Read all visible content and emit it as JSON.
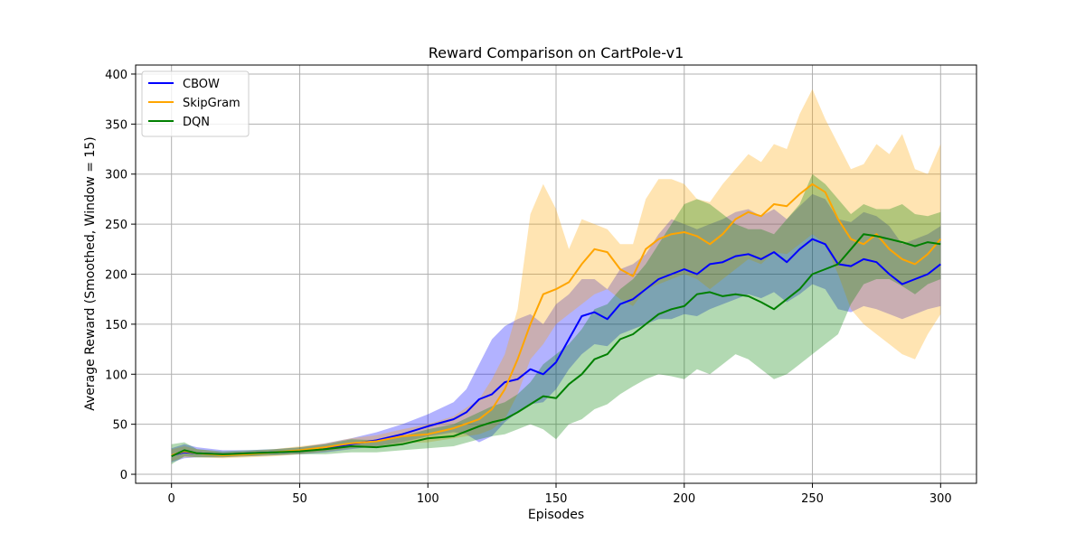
{
  "chart_data": {
    "type": "line",
    "title": "Reward Comparison on CartPole-v1",
    "xlabel": "Episodes",
    "ylabel": "Average Reward (Smoothed, Window = 15)",
    "xlim": [
      -14,
      314
    ],
    "ylim": [
      -9,
      409
    ],
    "xticks": [
      0,
      50,
      100,
      150,
      200,
      250,
      300
    ],
    "yticks": [
      0,
      50,
      100,
      150,
      200,
      250,
      300,
      350,
      400
    ],
    "grid": true,
    "legend_position": "top-left",
    "series": [
      {
        "name": "CBOW",
        "color": "#0000ff",
        "x": [
          0,
          5,
          10,
          20,
          30,
          40,
          50,
          60,
          70,
          80,
          90,
          100,
          110,
          115,
          120,
          125,
          130,
          135,
          140,
          145,
          150,
          155,
          160,
          165,
          170,
          175,
          180,
          185,
          190,
          195,
          200,
          205,
          210,
          215,
          220,
          225,
          230,
          235,
          240,
          245,
          250,
          255,
          260,
          265,
          270,
          275,
          280,
          285,
          290,
          295,
          300
        ],
        "mean": [
          19,
          22,
          21,
          20,
          21,
          22,
          23,
          26,
          30,
          34,
          40,
          48,
          55,
          62,
          75,
          80,
          92,
          95,
          105,
          100,
          112,
          135,
          158,
          162,
          155,
          170,
          175,
          185,
          195,
          200,
          205,
          200,
          210,
          212,
          218,
          220,
          215,
          222,
          212,
          225,
          235,
          230,
          210,
          208,
          215,
          212,
          200,
          190,
          195,
          200,
          210
        ],
        "lower": [
          12,
          16,
          17,
          17,
          18,
          19,
          20,
          22,
          25,
          28,
          32,
          38,
          42,
          40,
          32,
          38,
          52,
          62,
          70,
          72,
          85,
          105,
          120,
          130,
          128,
          140,
          145,
          150,
          155,
          155,
          160,
          158,
          165,
          170,
          175,
          180,
          176,
          182,
          172,
          180,
          190,
          185,
          165,
          162,
          168,
          165,
          160,
          155,
          160,
          165,
          168
        ],
        "upper": [
          26,
          30,
          27,
          24,
          24,
          25,
          27,
          31,
          36,
          42,
          50,
          60,
          72,
          85,
          110,
          135,
          148,
          155,
          160,
          150,
          170,
          180,
          195,
          195,
          185,
          205,
          210,
          220,
          240,
          255,
          250,
          245,
          250,
          255,
          262,
          265,
          258,
          265,
          255,
          268,
          280,
          275,
          255,
          252,
          262,
          258,
          248,
          230,
          235,
          240,
          248
        ]
      },
      {
        "name": "SkipGram",
        "color": "#ffa500",
        "x": [
          0,
          5,
          10,
          20,
          30,
          40,
          50,
          60,
          70,
          80,
          90,
          100,
          110,
          120,
          125,
          130,
          135,
          140,
          145,
          150,
          155,
          160,
          165,
          170,
          175,
          180,
          185,
          190,
          195,
          200,
          205,
          210,
          215,
          220,
          225,
          230,
          235,
          240,
          245,
          250,
          255,
          260,
          265,
          270,
          275,
          280,
          285,
          290,
          295,
          300
        ],
        "mean": [
          19,
          23,
          21,
          19,
          20,
          22,
          24,
          27,
          31,
          33,
          38,
          40,
          46,
          55,
          65,
          85,
          115,
          150,
          180,
          185,
          192,
          210,
          225,
          222,
          205,
          198,
          225,
          235,
          240,
          242,
          238,
          230,
          240,
          255,
          262,
          258,
          270,
          268,
          280,
          290,
          282,
          255,
          235,
          230,
          240,
          225,
          215,
          210,
          220,
          235
        ],
        "lower": [
          13,
          17,
          17,
          16,
          17,
          18,
          20,
          23,
          26,
          28,
          31,
          32,
          36,
          40,
          45,
          55,
          80,
          115,
          130,
          150,
          160,
          170,
          180,
          185,
          175,
          168,
          185,
          190,
          195,
          200,
          195,
          185,
          195,
          205,
          215,
          210,
          222,
          220,
          230,
          240,
          230,
          200,
          165,
          150,
          140,
          130,
          120,
          115,
          140,
          160
        ],
        "upper": [
          25,
          28,
          25,
          22,
          23,
          25,
          28,
          31,
          36,
          39,
          45,
          50,
          58,
          75,
          95,
          120,
          165,
          260,
          290,
          265,
          225,
          255,
          250,
          245,
          230,
          230,
          275,
          295,
          295,
          290,
          275,
          272,
          290,
          305,
          320,
          312,
          330,
          325,
          360,
          385,
          355,
          330,
          305,
          310,
          330,
          320,
          340,
          305,
          300,
          330
        ]
      },
      {
        "name": "DQN",
        "color": "#008000",
        "x": [
          0,
          5,
          10,
          20,
          30,
          40,
          50,
          60,
          70,
          80,
          90,
          100,
          110,
          120,
          125,
          130,
          135,
          140,
          145,
          150,
          155,
          160,
          165,
          170,
          175,
          180,
          185,
          190,
          195,
          200,
          205,
          210,
          215,
          220,
          225,
          230,
          235,
          240,
          245,
          250,
          255,
          260,
          265,
          270,
          275,
          280,
          285,
          290,
          295,
          300
        ],
        "mean": [
          18,
          24,
          21,
          20,
          21,
          22,
          23,
          25,
          28,
          27,
          30,
          36,
          38,
          48,
          52,
          55,
          62,
          70,
          78,
          76,
          90,
          100,
          115,
          120,
          135,
          140,
          150,
          160,
          165,
          168,
          180,
          182,
          178,
          180,
          178,
          172,
          165,
          175,
          185,
          200,
          205,
          210,
          225,
          240,
          238,
          235,
          232,
          228,
          232,
          230
        ],
        "lower": [
          10,
          18,
          17,
          17,
          18,
          19,
          20,
          20,
          22,
          22,
          24,
          26,
          28,
          35,
          38,
          40,
          45,
          50,
          45,
          35,
          50,
          55,
          65,
          70,
          80,
          88,
          95,
          100,
          98,
          95,
          105,
          100,
          110,
          120,
          115,
          105,
          95,
          100,
          110,
          120,
          130,
          140,
          170,
          190,
          195,
          195,
          188,
          180,
          190,
          195
        ],
        "upper": [
          30,
          32,
          25,
          23,
          24,
          25,
          27,
          30,
          35,
          34,
          38,
          45,
          50,
          62,
          68,
          72,
          80,
          92,
          110,
          120,
          130,
          145,
          165,
          170,
          185,
          195,
          210,
          230,
          250,
          270,
          275,
          270,
          260,
          250,
          245,
          245,
          240,
          255,
          270,
          300,
          290,
          275,
          260,
          270,
          265,
          265,
          270,
          260,
          258,
          262
        ]
      }
    ]
  }
}
